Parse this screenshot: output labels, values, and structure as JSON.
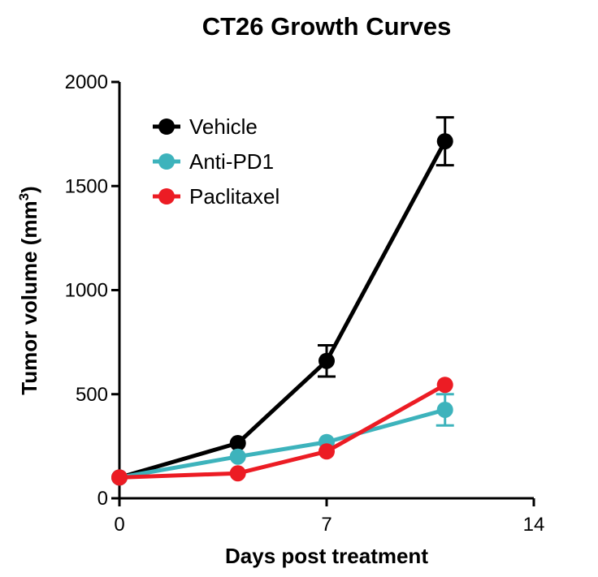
{
  "chart_data": {
    "type": "line",
    "title": "CT26 Growth Curves",
    "xlabel": "Days post treatment",
    "ylabel_main": "Tumor volume (mm",
    "ylabel_sup": "3",
    "ylabel_end": ")",
    "xlim": [
      0,
      14
    ],
    "ylim": [
      0,
      2000
    ],
    "xticks": [
      "0",
      "7",
      "14"
    ],
    "yticks": [
      "0",
      "500",
      "1000",
      "1500",
      "2000"
    ],
    "legend_position": "top-left",
    "grid": false,
    "x": [
      0,
      4,
      7,
      11
    ],
    "series": [
      {
        "name": "Vehicle",
        "color": "#000000",
        "values": [
          100,
          265,
          660,
          1715
        ],
        "errors": [
          0,
          0,
          75,
          115
        ]
      },
      {
        "name": "Anti-PD1",
        "color": "#3db3bc",
        "values": [
          100,
          200,
          270,
          425
        ],
        "errors": [
          0,
          0,
          0,
          75
        ]
      },
      {
        "name": "Paclitaxel",
        "color": "#ec1c24",
        "values": [
          100,
          120,
          225,
          545
        ],
        "errors": [
          0,
          0,
          0,
          0
        ]
      }
    ]
  }
}
